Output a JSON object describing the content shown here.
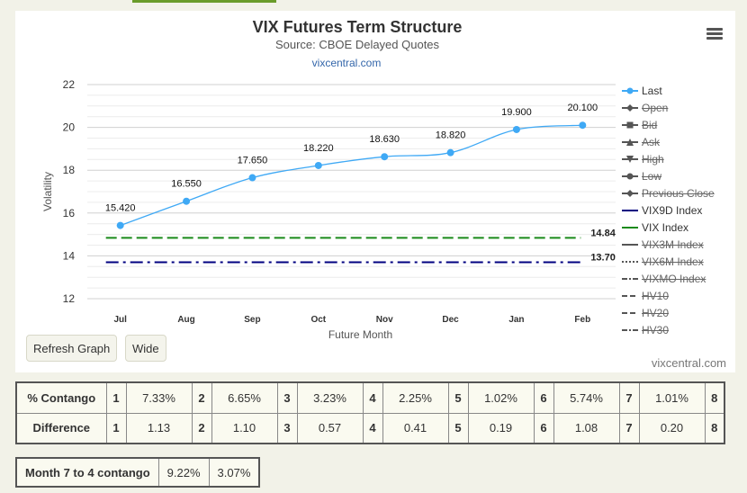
{
  "chart_data": {
    "type": "line",
    "title": "VIX Futures Term Structure",
    "subtitle": "Source: CBOE Delayed Quotes",
    "site": "vixcentral.com",
    "xlabel": "Future Month",
    "ylabel": "Volatility",
    "categories": [
      "Jul",
      "Aug",
      "Sep",
      "Oct",
      "Nov",
      "Dec",
      "Jan",
      "Feb"
    ],
    "ylim": [
      12,
      22
    ],
    "yticks": [
      12,
      14,
      16,
      18,
      20,
      22
    ],
    "series": [
      {
        "name": "Last",
        "values": [
          15.42,
          16.55,
          17.65,
          18.22,
          18.63,
          18.82,
          19.9,
          20.1
        ],
        "labels": [
          "15.420",
          "16.550",
          "17.650",
          "18.220",
          "18.630",
          "18.820",
          "19.900",
          "20.100"
        ],
        "color": "#3fa9f5"
      }
    ],
    "reference_lines": [
      {
        "name": "VIX Index",
        "value": 14.84,
        "label": "14.84",
        "color": "#1a8a1a",
        "style": "dash"
      },
      {
        "name": "VIX9D Index",
        "value": 13.7,
        "label": "13.70",
        "color": "#000080",
        "style": "dashdot"
      }
    ],
    "grid": true,
    "legend_position": "right"
  },
  "legend": [
    {
      "name": "Last",
      "hidden": false,
      "symbol": "circle-line",
      "color": "#3fa9f5"
    },
    {
      "name": "Open",
      "hidden": true,
      "symbol": "diamond-line",
      "color": "#555555"
    },
    {
      "name": "Bid",
      "hidden": true,
      "symbol": "square-line",
      "color": "#555555"
    },
    {
      "name": "Ask",
      "hidden": true,
      "symbol": "triangle-line",
      "color": "#555555"
    },
    {
      "name": "High",
      "hidden": true,
      "symbol": "triangle-down-line",
      "color": "#555555"
    },
    {
      "name": "Low",
      "hidden": true,
      "symbol": "circle-line",
      "color": "#555555"
    },
    {
      "name": "Previous Close",
      "hidden": true,
      "symbol": "diamond-line",
      "color": "#555555"
    },
    {
      "name": "VIX9D Index",
      "hidden": false,
      "symbol": "solid",
      "color": "#000080"
    },
    {
      "name": "VIX Index",
      "hidden": false,
      "symbol": "solid",
      "color": "#1a8a1a"
    },
    {
      "name": "VIX3M Index",
      "hidden": true,
      "symbol": "solid",
      "color": "#555555"
    },
    {
      "name": "VIX6M Index",
      "hidden": true,
      "symbol": "dotted",
      "color": "#555555"
    },
    {
      "name": "VIXMO Index",
      "hidden": true,
      "symbol": "dash-dot",
      "color": "#555555"
    },
    {
      "name": "HV10",
      "hidden": true,
      "symbol": "dashed",
      "color": "#555555"
    },
    {
      "name": "HV20",
      "hidden": true,
      "symbol": "dashed",
      "color": "#555555"
    },
    {
      "name": "HV30",
      "hidden": true,
      "symbol": "dash-dot",
      "color": "#555555"
    }
  ],
  "buttons": {
    "refresh": "Refresh Graph",
    "wide": "Wide"
  },
  "watermark": "vixcentral.com",
  "contango_table": {
    "rows": [
      {
        "label": "% Contango",
        "cells": [
          [
            "1",
            "7.33%"
          ],
          [
            "2",
            "6.65%"
          ],
          [
            "3",
            "3.23%"
          ],
          [
            "4",
            "2.25%"
          ],
          [
            "5",
            "1.02%"
          ],
          [
            "6",
            "5.74%"
          ],
          [
            "7",
            "1.01%"
          ]
        ],
        "last_month": "8"
      },
      {
        "label": "Difference",
        "cells": [
          [
            "1",
            "1.13"
          ],
          [
            "2",
            "1.10"
          ],
          [
            "3",
            "0.57"
          ],
          [
            "4",
            "0.41"
          ],
          [
            "5",
            "0.19"
          ],
          [
            "6",
            "1.08"
          ],
          [
            "7",
            "0.20"
          ]
        ],
        "last_month": "8"
      }
    ]
  },
  "month7to4": {
    "label": "Month 7 to 4 contango",
    "pct": "9.22%",
    "diff": "3.07%"
  }
}
